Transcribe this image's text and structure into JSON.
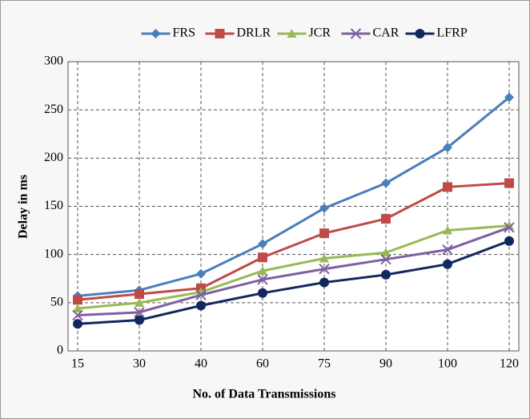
{
  "chart_data": {
    "type": "line",
    "x_label": "No. of Data Transmissions",
    "y_label": "Delay in ms",
    "categories": [
      "15",
      "30",
      "40",
      "60",
      "75",
      "90",
      "100",
      "120"
    ],
    "series": [
      {
        "name": "FRS",
        "color": "#4a7ebb",
        "marker": "diamond",
        "values": [
          57,
          63,
          80,
          111,
          148,
          174,
          211,
          263
        ]
      },
      {
        "name": "DRLR",
        "color": "#be4b48",
        "marker": "square",
        "values": [
          53,
          59,
          65,
          97,
          122,
          137,
          170,
          174
        ]
      },
      {
        "name": "JCR",
        "color": "#98b954",
        "marker": "triangle",
        "values": [
          44,
          50,
          61,
          83,
          96,
          102,
          125,
          130
        ]
      },
      {
        "name": "CAR",
        "color": "#7d60a0",
        "marker": "x",
        "values": [
          37,
          40,
          58,
          74,
          85,
          95,
          105,
          128
        ]
      },
      {
        "name": "LFRP",
        "color": "#10285e",
        "marker": "circle",
        "values": [
          28,
          32,
          47,
          60,
          71,
          79,
          90,
          114
        ]
      }
    ],
    "ylim": [
      0,
      300
    ],
    "yticks": [
      0,
      50,
      100,
      150,
      200,
      250,
      300
    ],
    "grid": true,
    "legend": "top"
  }
}
